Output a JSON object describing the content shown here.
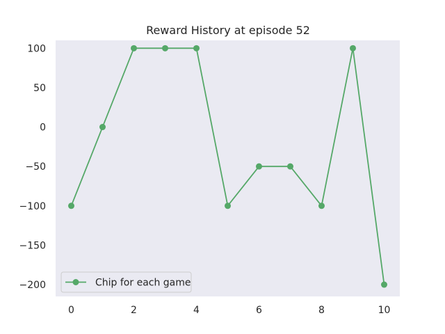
{
  "chart_data": {
    "type": "line",
    "title": "Reward History at episode 52",
    "xlabel": "",
    "ylabel": "",
    "x": [
      0,
      1,
      2,
      3,
      4,
      5,
      6,
      7,
      8,
      9,
      10
    ],
    "series": [
      {
        "name": "Chip for each game",
        "values": [
          -100,
          0,
          100,
          100,
          100,
          -100,
          -50,
          -50,
          -100,
          100,
          -200
        ],
        "color": "#55a868",
        "marker": "circle"
      }
    ],
    "xlim": [
      -0.5,
      10.5
    ],
    "ylim": [
      -215,
      110
    ],
    "x_ticks": [
      0,
      2,
      4,
      6,
      8,
      10
    ],
    "x_tick_labels": [
      "0",
      "2",
      "4",
      "6",
      "8",
      "10"
    ],
    "y_ticks": [
      100,
      50,
      0,
      -50,
      -100,
      -150,
      -200
    ],
    "y_tick_labels": [
      "100",
      "50",
      "0",
      "−50",
      "−100",
      "−150",
      "−200"
    ],
    "grid": false,
    "legend_position": "lower-left",
    "plot_background": "#eaeaf2"
  }
}
